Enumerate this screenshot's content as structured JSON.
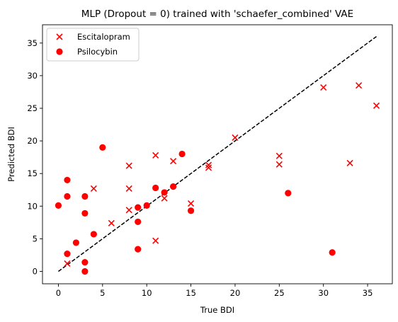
{
  "chart_data": {
    "type": "scatter",
    "title": "MLP (Dropout = 0) trained with 'schaefer_combined' VAE",
    "xlabel": "True BDI",
    "ylabel": "Predicted BDI",
    "xlim": [
      -1.8,
      37.8
    ],
    "ylim": [
      -1.9,
      37.8
    ],
    "xticks": [
      0,
      5,
      10,
      15,
      20,
      25,
      30,
      35
    ],
    "yticks": [
      0,
      5,
      10,
      15,
      20,
      25,
      30,
      35
    ],
    "grid": false,
    "legend_position": "top-left",
    "reference_line": {
      "style": "dashed",
      "color": "#000000",
      "x": [
        0,
        36
      ],
      "y": [
        0,
        36
      ]
    },
    "series": [
      {
        "name": "Escitalopram",
        "marker": "x",
        "color": "#ff0000",
        "points": [
          [
            1,
            1.2
          ],
          [
            4,
            12.7
          ],
          [
            6,
            7.4
          ],
          [
            8,
            16.2
          ],
          [
            8,
            12.7
          ],
          [
            8,
            9.4
          ],
          [
            11,
            17.8
          ],
          [
            11,
            4.7
          ],
          [
            12,
            11.2
          ],
          [
            13,
            16.9
          ],
          [
            15,
            10.4
          ],
          [
            17,
            16.3
          ],
          [
            17,
            15.9
          ],
          [
            20,
            20.5
          ],
          [
            25,
            17.7
          ],
          [
            25,
            16.4
          ],
          [
            30,
            28.2
          ],
          [
            33,
            16.6
          ],
          [
            34,
            28.5
          ],
          [
            36,
            25.4
          ]
        ]
      },
      {
        "name": "Psilocybin",
        "marker": "o",
        "color": "#ff0000",
        "points": [
          [
            0,
            10.1
          ],
          [
            1,
            14.0
          ],
          [
            1,
            11.5
          ],
          [
            1,
            2.7
          ],
          [
            2,
            4.4
          ],
          [
            3,
            11.5
          ],
          [
            3,
            8.9
          ],
          [
            3,
            1.4
          ],
          [
            3,
            0.0
          ],
          [
            4,
            5.7
          ],
          [
            5,
            19.0
          ],
          [
            9,
            9.8
          ],
          [
            9,
            7.6
          ],
          [
            9,
            3.4
          ],
          [
            10,
            10.1
          ],
          [
            11,
            12.8
          ],
          [
            12,
            12.1
          ],
          [
            13,
            13.0
          ],
          [
            14,
            18.0
          ],
          [
            15,
            9.3
          ],
          [
            26,
            12.0
          ],
          [
            31,
            2.9
          ]
        ]
      }
    ]
  }
}
